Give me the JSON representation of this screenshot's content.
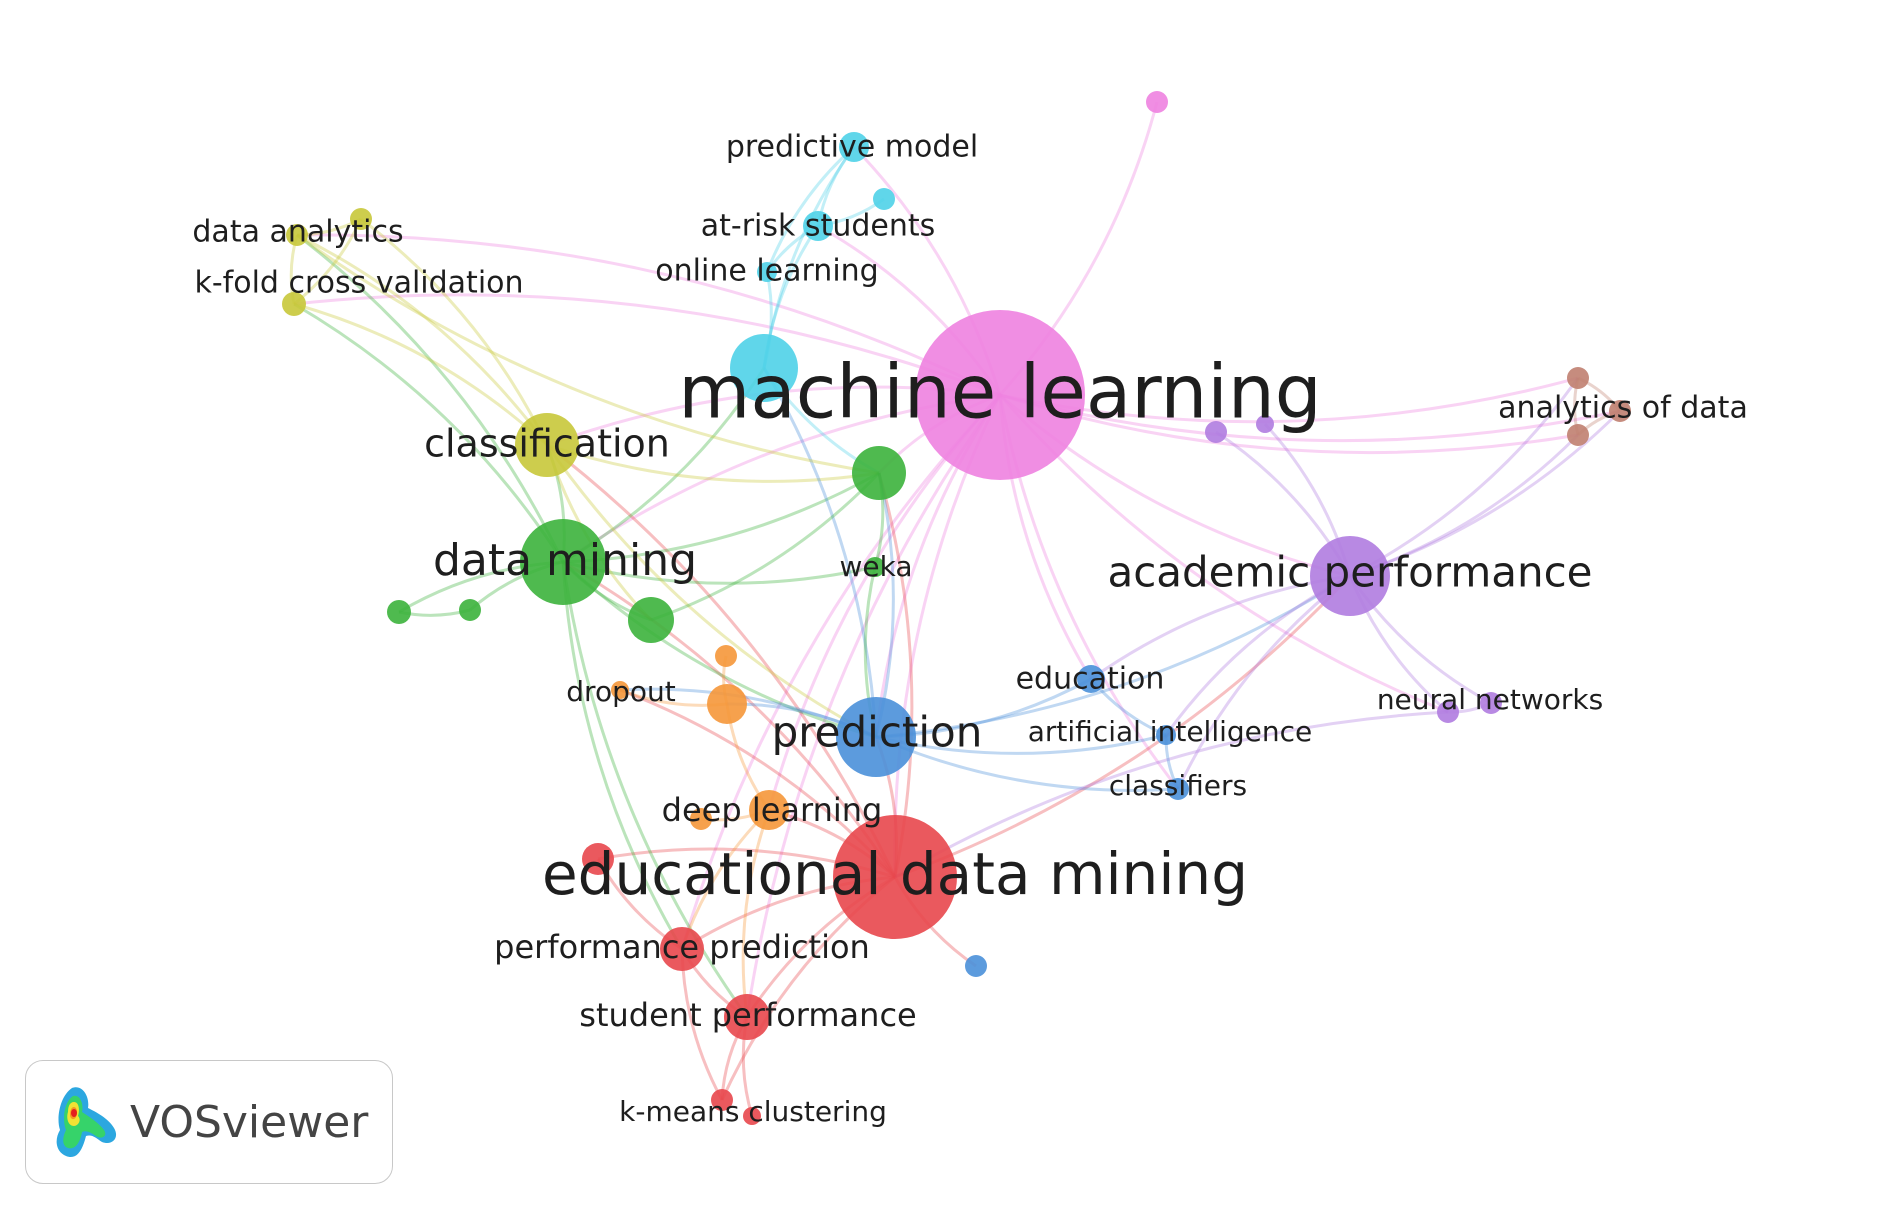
{
  "colors": {
    "red": "#e8474c",
    "green": "#3cb23c",
    "blue": "#4a90d9",
    "yellow": "#c8c83a",
    "purple": "#b07ce0",
    "cyan": "#4fd2e8",
    "orange": "#f5973a",
    "brown": "#c08070",
    "pink": "#ee82e0"
  },
  "nodes": [
    {
      "id": "machine-learning",
      "label": "machine learning",
      "cluster": "pink",
      "weight": 5
    },
    {
      "id": "educational-data-mining",
      "label": "educational data mining",
      "cluster": "red",
      "weight": 4
    },
    {
      "id": "data-mining",
      "label": "data mining",
      "cluster": "green",
      "weight": 3
    },
    {
      "id": "classification",
      "label": "classification",
      "cluster": "yellow",
      "weight": 2
    },
    {
      "id": "prediction",
      "label": "prediction",
      "cluster": "blue",
      "weight": 3
    },
    {
      "id": "academic-performance",
      "label": "academic performance",
      "cluster": "purple",
      "weight": 3
    },
    {
      "id": "predictive-model",
      "label": "predictive model",
      "cluster": "cyan",
      "weight": 1
    },
    {
      "id": "at-risk-students",
      "label": "at-risk students",
      "cluster": "cyan",
      "weight": 1
    },
    {
      "id": "online-learning",
      "label": "online learning",
      "cluster": "cyan",
      "weight": 1
    },
    {
      "id": "data-analytics",
      "label": "data analytics",
      "cluster": "yellow",
      "weight": 1
    },
    {
      "id": "k-fold-cross-validation",
      "label": "k-fold cross validation",
      "cluster": "yellow",
      "weight": 1
    },
    {
      "id": "analytics-of-data",
      "label": "analytics of data",
      "cluster": "brown",
      "weight": 1
    },
    {
      "id": "weka",
      "label": "weka",
      "cluster": "green",
      "weight": 1
    },
    {
      "id": "dropout",
      "label": "dropout",
      "cluster": "orange",
      "weight": 1
    },
    {
      "id": "education",
      "label": "education",
      "cluster": "blue",
      "weight": 1
    },
    {
      "id": "artificial-intelligence",
      "label": "artificial intelligence",
      "cluster": "blue",
      "weight": 1
    },
    {
      "id": "classifiers",
      "label": "classifiers",
      "cluster": "blue",
      "weight": 1
    },
    {
      "id": "neural-networks",
      "label": "neural networks",
      "cluster": "purple",
      "weight": 1
    },
    {
      "id": "deep-learning",
      "label": "deep learning",
      "cluster": "orange",
      "weight": 2
    },
    {
      "id": "performance-prediction",
      "label": "performance prediction",
      "cluster": "red",
      "weight": 2
    },
    {
      "id": "student-performance",
      "label": "student performance",
      "cluster": "red",
      "weight": 2
    },
    {
      "id": "k-means-clustering",
      "label": "k-means clustering",
      "cluster": "red",
      "weight": 1
    },
    {
      "id": "unlabeled-pink-top",
      "label": "",
      "cluster": "pink",
      "weight": 1
    },
    {
      "id": "unlabeled-cyan-big",
      "label": "",
      "cluster": "cyan",
      "weight": 3
    },
    {
      "id": "unlabeled-cyan-small",
      "label": "",
      "cluster": "cyan",
      "weight": 1
    },
    {
      "id": "unlabeled-yellow-top",
      "label": "",
      "cluster": "yellow",
      "weight": 1
    },
    {
      "id": "unlabeled-green-big",
      "label": "",
      "cluster": "green",
      "weight": 2
    },
    {
      "id": "unlabeled-green-mid",
      "label": "",
      "cluster": "green",
      "weight": 2
    },
    {
      "id": "unlabeled-green-left1",
      "label": "",
      "cluster": "green",
      "weight": 1
    },
    {
      "id": "unlabeled-green-left2",
      "label": "",
      "cluster": "green",
      "weight": 1
    },
    {
      "id": "unlabeled-orange-1",
      "label": "",
      "cluster": "orange",
      "weight": 1
    },
    {
      "id": "unlabeled-orange-2",
      "label": "",
      "cluster": "orange",
      "weight": 2
    },
    {
      "id": "unlabeled-orange-3",
      "label": "",
      "cluster": "orange",
      "weight": 1
    },
    {
      "id": "unlabeled-red-1",
      "label": "",
      "cluster": "red",
      "weight": 1
    },
    {
      "id": "unlabeled-red-2",
      "label": "",
      "cluster": "red",
      "weight": 1
    },
    {
      "id": "unlabeled-blue-1",
      "label": "",
      "cluster": "blue",
      "weight": 1
    },
    {
      "id": "unlabeled-purple-1",
      "label": "",
      "cluster": "purple",
      "weight": 1
    },
    {
      "id": "unlabeled-purple-2",
      "label": "",
      "cluster": "purple",
      "weight": 1
    },
    {
      "id": "unlabeled-purple-3",
      "label": "",
      "cluster": "purple",
      "weight": 1
    },
    {
      "id": "unlabeled-brown-1",
      "label": "",
      "cluster": "brown",
      "weight": 1
    },
    {
      "id": "unlabeled-brown-2",
      "label": "",
      "cluster": "brown",
      "weight": 1
    }
  ],
  "links": [
    [
      "machine-learning",
      "educational-data-mining"
    ],
    [
      "machine-learning",
      "data-mining"
    ],
    [
      "machine-learning",
      "classification"
    ],
    [
      "machine-learning",
      "prediction"
    ],
    [
      "machine-learning",
      "academic-performance"
    ],
    [
      "machine-learning",
      "unlabeled-pink-top"
    ],
    [
      "machine-learning",
      "predictive-model"
    ],
    [
      "machine-learning",
      "at-risk-students"
    ],
    [
      "machine-learning",
      "analytics-of-data"
    ],
    [
      "machine-learning",
      "unlabeled-brown-1"
    ],
    [
      "machine-learning",
      "unlabeled-brown-2"
    ],
    [
      "machine-learning",
      "deep-learning"
    ],
    [
      "machine-learning",
      "performance-prediction"
    ],
    [
      "machine-learning",
      "student-performance"
    ],
    [
      "machine-learning",
      "neural-networks"
    ],
    [
      "machine-learning",
      "unlabeled-green-big"
    ],
    [
      "machine-learning",
      "data-analytics"
    ],
    [
      "machine-learning",
      "k-fold-cross-validation"
    ],
    [
      "machine-learning",
      "classifiers"
    ],
    [
      "machine-learning",
      "education"
    ],
    [
      "educational-data-mining",
      "data-mining"
    ],
    [
      "educational-data-mining",
      "prediction"
    ],
    [
      "educational-data-mining",
      "academic-performance"
    ],
    [
      "educational-data-mining",
      "classification"
    ],
    [
      "educational-data-mining",
      "performance-prediction"
    ],
    [
      "educational-data-mining",
      "student-performance"
    ],
    [
      "educational-data-mining",
      "deep-learning"
    ],
    [
      "educational-data-mining",
      "unlabeled-blue-1"
    ],
    [
      "educational-data-mining",
      "unlabeled-red-1"
    ],
    [
      "educational-data-mining",
      "k-means-clustering"
    ],
    [
      "educational-data-mining",
      "unlabeled-green-big"
    ],
    [
      "educational-data-mining",
      "dropout"
    ],
    [
      "data-mining",
      "classification"
    ],
    [
      "data-mining",
      "prediction"
    ],
    [
      "data-mining",
      "unlabeled-green-big"
    ],
    [
      "data-mining",
      "unlabeled-green-mid"
    ],
    [
      "data-mining",
      "unlabeled-green-left1"
    ],
    [
      "data-mining",
      "unlabeled-green-left2"
    ],
    [
      "data-mining",
      "weka"
    ],
    [
      "data-mining",
      "data-analytics"
    ],
    [
      "data-mining",
      "k-fold-cross-validation"
    ],
    [
      "data-mining",
      "unlabeled-cyan-big"
    ],
    [
      "data-mining",
      "student-performance"
    ],
    [
      "data-mining",
      "performance-prediction"
    ],
    [
      "classification",
      "data-analytics"
    ],
    [
      "classification",
      "k-fold-cross-validation"
    ],
    [
      "classification",
      "unlabeled-yellow-top"
    ],
    [
      "classification",
      "prediction"
    ],
    [
      "classification",
      "unlabeled-green-big"
    ],
    [
      "classification",
      "unlabeled-green-mid"
    ],
    [
      "prediction",
      "unlabeled-green-big"
    ],
    [
      "prediction",
      "education"
    ],
    [
      "prediction",
      "artificial-intelligence"
    ],
    [
      "prediction",
      "classifiers"
    ],
    [
      "prediction",
      "academic-performance"
    ],
    [
      "prediction",
      "unlabeled-cyan-big"
    ],
    [
      "prediction",
      "unlabeled-orange-2"
    ],
    [
      "prediction",
      "dropout"
    ],
    [
      "academic-performance",
      "analytics-of-data"
    ],
    [
      "academic-performance",
      "unlabeled-brown-1"
    ],
    [
      "academic-performance",
      "unlabeled-brown-2"
    ],
    [
      "academic-performance",
      "neural-networks"
    ],
    [
      "academic-performance",
      "unlabeled-purple-1"
    ],
    [
      "academic-performance",
      "unlabeled-purple-2"
    ],
    [
      "academic-performance",
      "unlabeled-purple-3"
    ],
    [
      "academic-performance",
      "education"
    ],
    [
      "academic-performance",
      "artificial-intelligence"
    ],
    [
      "academic-performance",
      "classifiers"
    ],
    [
      "predictive-model",
      "at-risk-students"
    ],
    [
      "predictive-model",
      "online-learning"
    ],
    [
      "predictive-model",
      "unlabeled-cyan-big"
    ],
    [
      "at-risk-students",
      "online-learning"
    ],
    [
      "at-risk-students",
      "unlabeled-cyan-small"
    ],
    [
      "at-risk-students",
      "unlabeled-cyan-big"
    ],
    [
      "unlabeled-cyan-big",
      "online-learning"
    ],
    [
      "unlabeled-cyan-big",
      "unlabeled-green-big"
    ],
    [
      "data-analytics",
      "k-fold-cross-validation"
    ],
    [
      "data-analytics",
      "unlabeled-yellow-top"
    ],
    [
      "k-fold-cross-validation",
      "unlabeled-yellow-top"
    ],
    [
      "data-analytics",
      "unlabeled-green-big"
    ],
    [
      "unlabeled-green-mid",
      "unlabeled-green-big"
    ],
    [
      "unlabeled-green-left1",
      "unlabeled-green-left2"
    ],
    [
      "unlabeled-orange-1",
      "unlabeled-orange-2"
    ],
    [
      "unlabeled-orange-2",
      "deep-learning"
    ],
    [
      "unlabeled-orange-3",
      "deep-learning"
    ],
    [
      "dropout",
      "unlabeled-orange-2"
    ],
    [
      "deep-learning",
      "student-performance"
    ],
    [
      "deep-learning",
      "performance-prediction"
    ],
    [
      "performance-prediction",
      "student-performance"
    ],
    [
      "student-performance",
      "k-means-clustering"
    ],
    [
      "student-performance",
      "unlabeled-red-2"
    ],
    [
      "performance-prediction",
      "k-means-clustering"
    ],
    [
      "unlabeled-red-1",
      "performance-prediction"
    ],
    [
      "analytics-of-data",
      "unlabeled-brown-1"
    ],
    [
      "analytics-of-data",
      "unlabeled-brown-2"
    ],
    [
      "unlabeled-brown-1",
      "unlabeled-brown-2"
    ],
    [
      "neural-networks",
      "unlabeled-purple-3"
    ],
    [
      "neural-networks",
      "educational-data-mining"
    ],
    [
      "education",
      "artificial-intelligence"
    ],
    [
      "artificial-intelligence",
      "classifiers"
    ],
    [
      "weka",
      "unlabeled-green-big"
    ],
    [
      "weka",
      "prediction"
    ]
  ],
  "logo": {
    "text": "VOSviewer"
  }
}
